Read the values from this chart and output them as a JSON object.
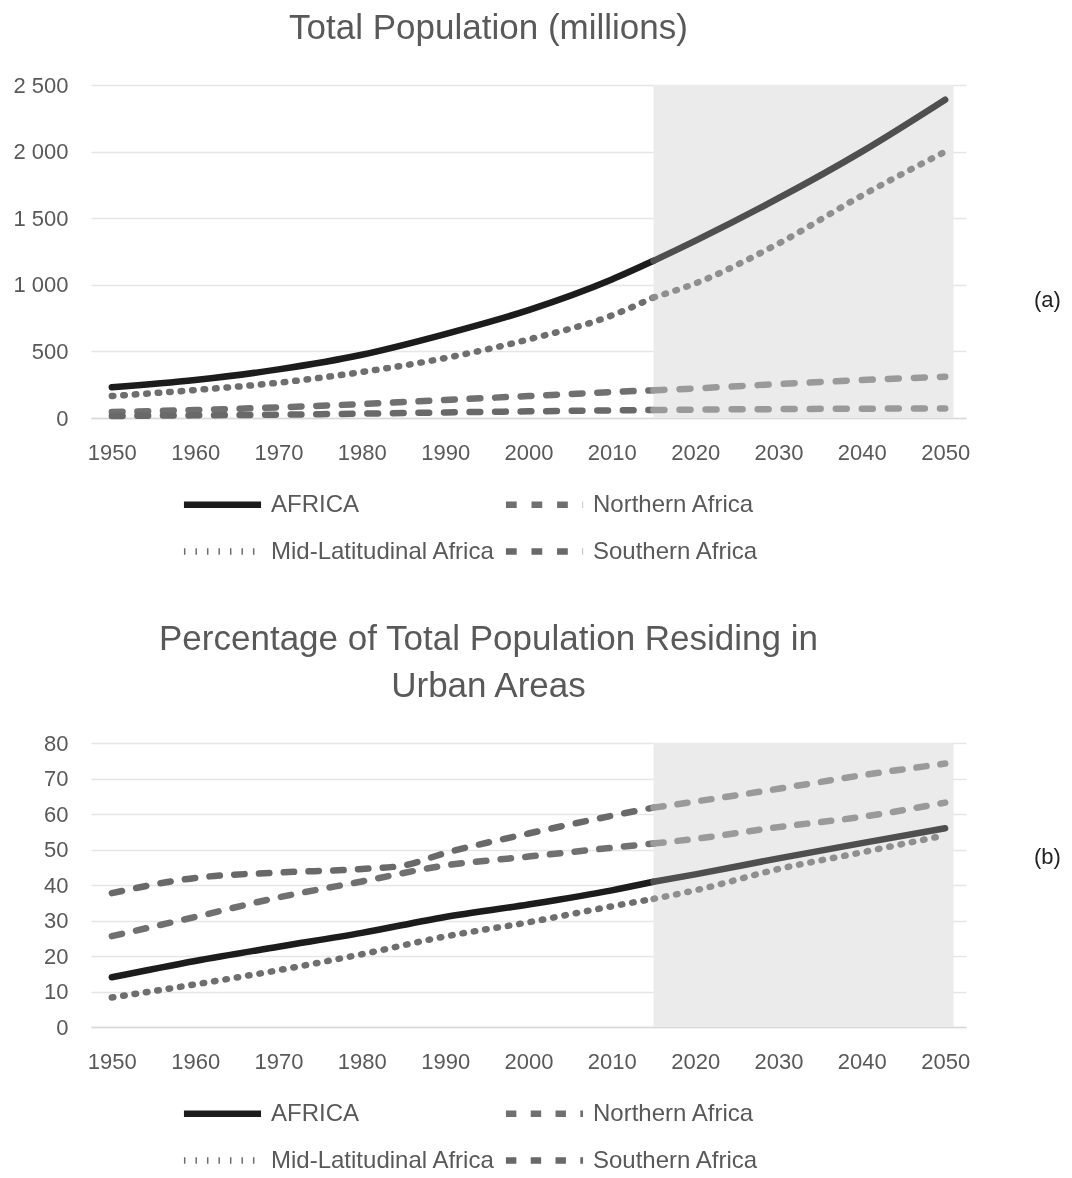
{
  "chart_data": [
    {
      "type": "line",
      "title": "Total Population (millions)",
      "xlim": [
        1947.5,
        2052.5
      ],
      "xticks": [
        1950,
        1960,
        1970,
        1980,
        1990,
        2000,
        2010,
        2020,
        2030,
        2040,
        2050
      ],
      "ylim": [
        0,
        2500
      ],
      "yticks": [
        0,
        500,
        {
          "value": 1000,
          "label": "1 000"
        },
        {
          "value": 1500,
          "label": "1 500"
        },
        {
          "value": 2000,
          "label": "2 000"
        },
        {
          "value": 2500,
          "label": "2 500"
        }
      ],
      "grid": "y",
      "legend": "bottom",
      "annotations": [
        "(a)"
      ],
      "bands": [
        {
          "axis": "x",
          "from": 2015,
          "to": 2051,
          "color": "#ebebeb"
        }
      ],
      "series": [
        {
          "name": "AFRICA",
          "color": "#1c1c1c",
          "line_style": "solid",
          "x": [
            1950,
            1960,
            1970,
            1980,
            1990,
            2000,
            2010,
            2015
          ],
          "values": [
            230,
            285,
            365,
            475,
            630,
            810,
            1040,
            1180
          ]
        },
        {
          "name": "Northern Africa",
          "color": "#707070",
          "line_style": "dashed",
          "x": [
            1950,
            1960,
            1970,
            1980,
            1990,
            2000,
            2010,
            2015
          ],
          "values": [
            45,
            60,
            80,
            105,
            135,
            165,
            195,
            208
          ]
        },
        {
          "name": "Mid-Latitudinal Africa",
          "color": "#6e6e6e",
          "line_style": "dotted",
          "x": [
            1950,
            1960,
            1970,
            1980,
            1990,
            2000,
            2010,
            2015
          ],
          "values": [
            165,
            210,
            265,
            345,
            450,
            590,
            770,
            905
          ]
        },
        {
          "name": "Southern Africa",
          "color": "#696969",
          "line_style": "dashed",
          "x": [
            1950,
            1960,
            1970,
            1980,
            1990,
            2000,
            2010,
            2015
          ],
          "values": [
            15,
            20,
            25,
            33,
            42,
            50,
            57,
            60
          ]
        },
        {
          "color": "#4f4f4f",
          "line_style": "solid",
          "x": [
            2015,
            2020,
            2030,
            2040,
            2050
          ],
          "values": [
            1180,
            1330,
            1650,
            2000,
            2390
          ]
        },
        {
          "color": "#9a9a9a",
          "line_style": "dashed",
          "x": [
            2015,
            2020,
            2030,
            2040,
            2050
          ],
          "values": [
            208,
            222,
            255,
            285,
            310
          ]
        },
        {
          "color": "#8f8f8f",
          "line_style": "dotted",
          "x": [
            2015,
            2020,
            2030,
            2040,
            2050
          ],
          "values": [
            905,
            1010,
            1310,
            1670,
            2000
          ]
        },
        {
          "color": "#9a9a9a",
          "line_style": "dashed",
          "x": [
            2015,
            2020,
            2030,
            2040,
            2050
          ],
          "values": [
            60,
            63,
            67,
            70,
            72
          ]
        }
      ]
    },
    {
      "type": "line",
      "title": "Percentage of Total Population Residing in Urban Areas",
      "xlim": [
        1947.5,
        2052.5
      ],
      "xticks": [
        1950,
        1960,
        1970,
        1980,
        1990,
        2000,
        2010,
        2020,
        2030,
        2040,
        2050
      ],
      "ylim": [
        0,
        80
      ],
      "yticks": [
        0,
        10,
        20,
        30,
        40,
        50,
        60,
        70,
        80
      ],
      "grid": "y",
      "legend": "bottom",
      "annotations": [
        "(b)"
      ],
      "bands": [
        {
          "axis": "x",
          "from": 2015,
          "to": 2051,
          "color": "#ebebeb"
        }
      ],
      "series": [
        {
          "name": "AFRICA",
          "color": "#1c1c1c",
          "line_style": "solid",
          "x": [
            1950,
            1960,
            1970,
            1980,
            1990,
            2000,
            2010,
            2015
          ],
          "values": [
            14,
            18.6,
            22.6,
            26.5,
            31,
            34.5,
            38.5,
            40.9
          ]
        },
        {
          "name": "Northern Africa",
          "color": "#707070",
          "line_style": "dashed",
          "x": [
            1950,
            1960,
            1970,
            1980,
            1990,
            2000,
            2010,
            2015
          ],
          "values": [
            25.6,
            31,
            36.5,
            41,
            45.5,
            48,
            50.5,
            51.7
          ]
        },
        {
          "name": "Mid-Latitudinal Africa",
          "color": "#6e6e6e",
          "line_style": "dotted",
          "x": [
            1950,
            1960,
            1970,
            1980,
            1990,
            2000,
            2010,
            2015
          ],
          "values": [
            8.3,
            12,
            16,
            20.5,
            25.5,
            29.5,
            34,
            36.1
          ]
        },
        {
          "name": "Southern Africa",
          "color": "#696969",
          "line_style": "dashed",
          "x": [
            1950,
            1960,
            1970,
            1980,
            1985,
            1990,
            2000,
            2010,
            2015
          ],
          "values": [
            37.7,
            42,
            43.5,
            44.5,
            45.5,
            49,
            54.5,
            59.5,
            61.8
          ]
        },
        {
          "color": "#4f4f4f",
          "line_style": "solid",
          "x": [
            2015,
            2020,
            2030,
            2040,
            2050
          ],
          "values": [
            40.9,
            43,
            47.5,
            51.8,
            56
          ]
        },
        {
          "color": "#9a9a9a",
          "line_style": "dashed",
          "x": [
            2015,
            2020,
            2030,
            2040,
            2050
          ],
          "values": [
            51.7,
            53,
            56.3,
            59.2,
            63.2
          ]
        },
        {
          "color": "#8f8f8f",
          "line_style": "dotted",
          "x": [
            2015,
            2020,
            2030,
            2040,
            2050
          ],
          "values": [
            36.1,
            38.5,
            44.5,
            49.2,
            54
          ]
        },
        {
          "color": "#9a9a9a",
          "line_style": "dashed",
          "x": [
            2015,
            2020,
            2030,
            2040,
            2050
          ],
          "values": [
            61.8,
            63.5,
            67.1,
            70.9,
            74.2
          ]
        }
      ]
    }
  ]
}
